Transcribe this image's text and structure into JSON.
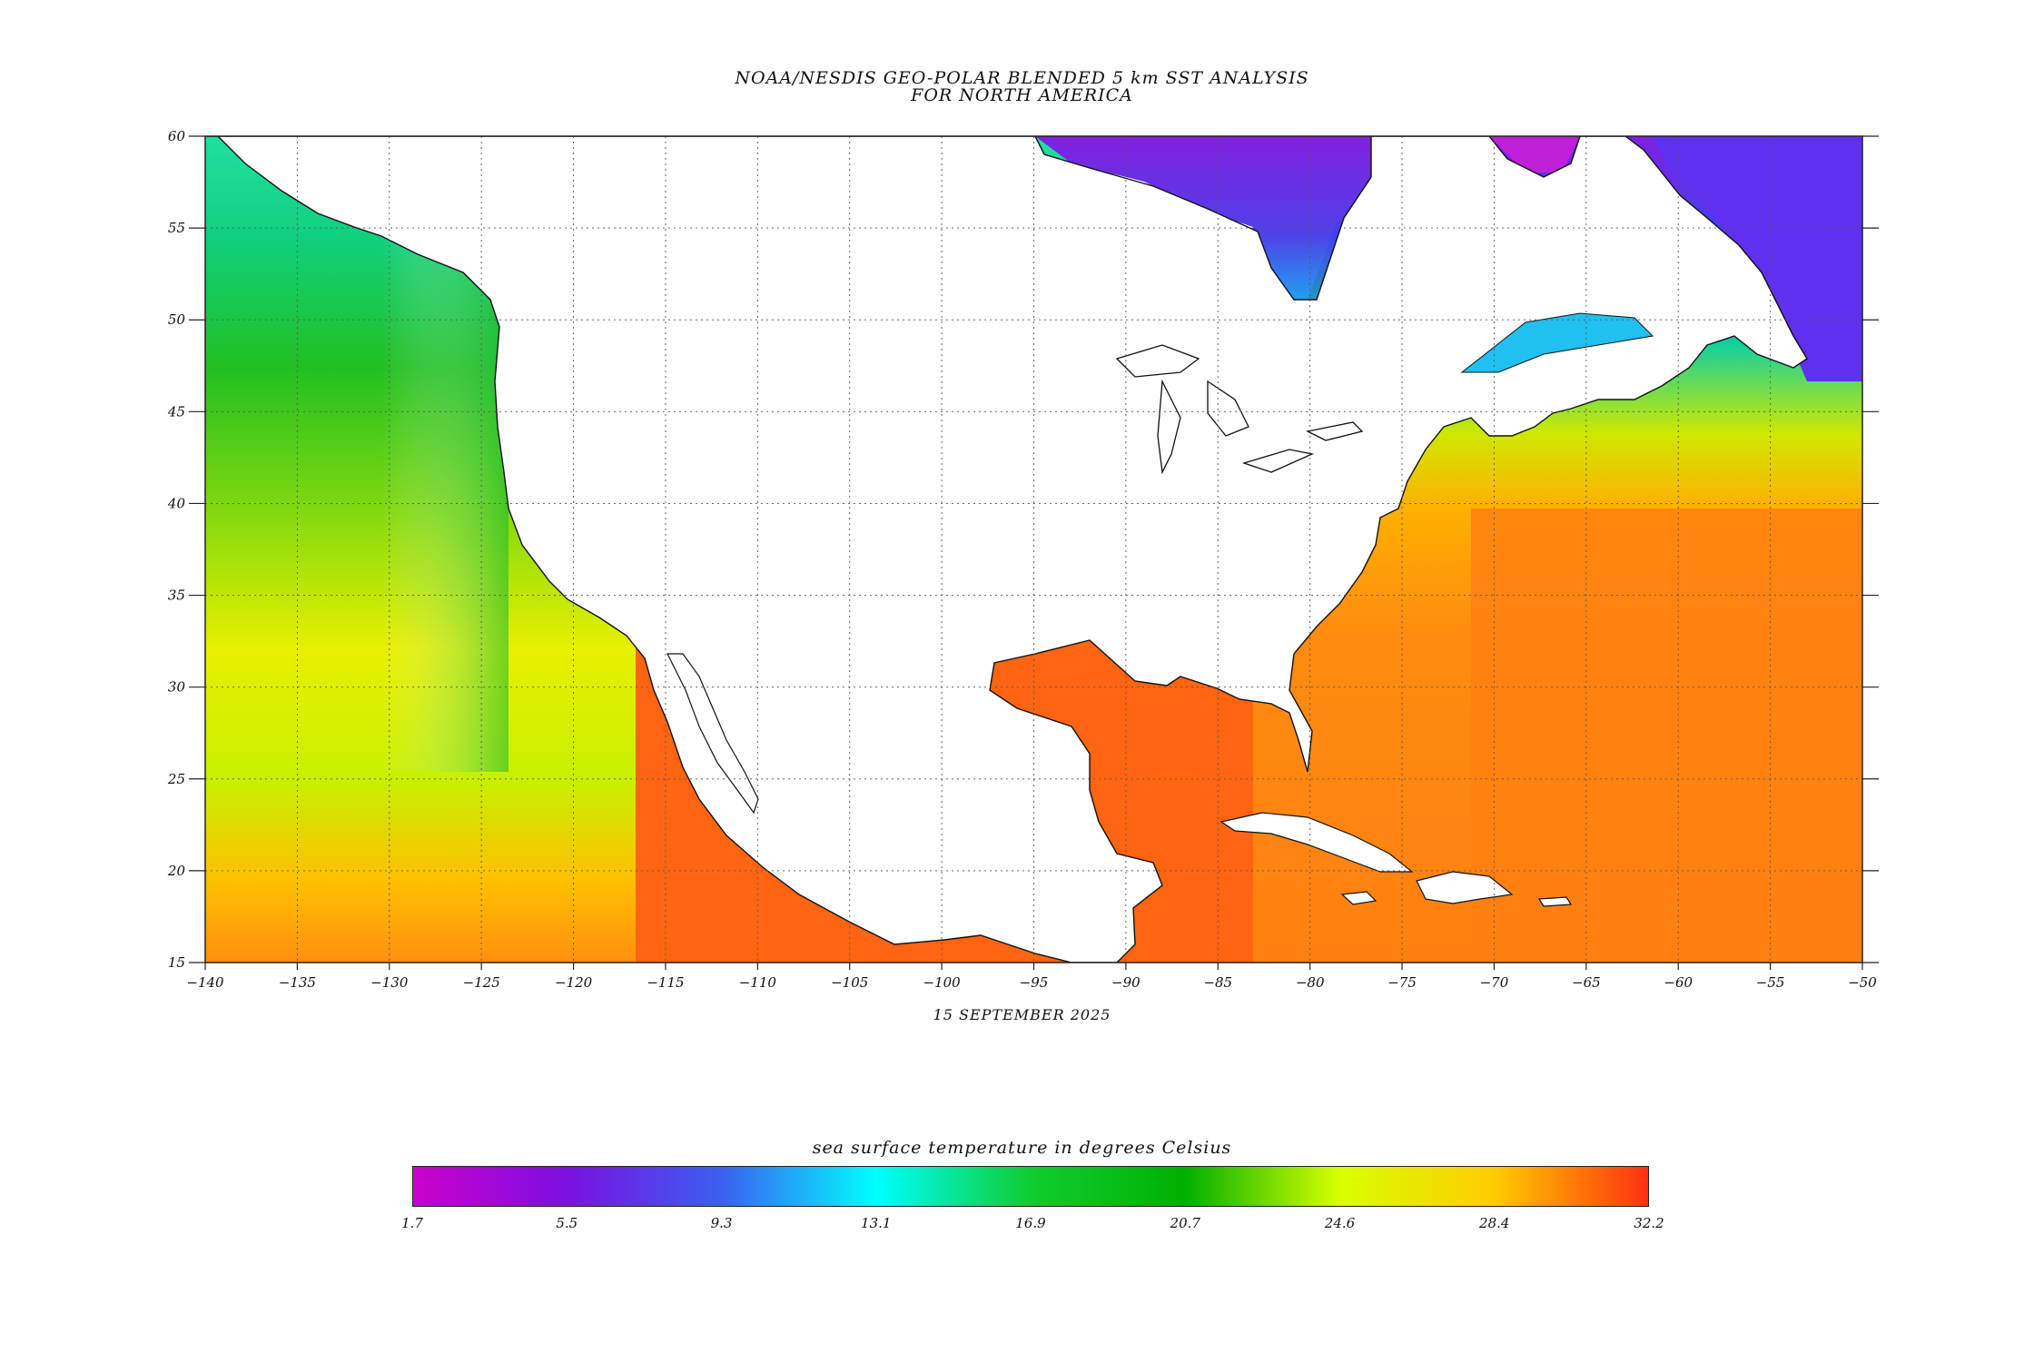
{
  "header": {
    "title_line1": "NOAA/NESDIS GEO-POLAR BLENDED 5 km SST ANALYSIS",
    "title_line2": "FOR NORTH AMERICA"
  },
  "map": {
    "lon_range": [
      -140,
      -50
    ],
    "lat_range": [
      15,
      60
    ],
    "lon_ticks": [
      "-140",
      "-135",
      "-130",
      "-125",
      "-120",
      "-115",
      "-110",
      "-105",
      "-100",
      "-95",
      "-90",
      "-85",
      "-80",
      "-75",
      "-70",
      "-65",
      "-60",
      "-55",
      "-50"
    ],
    "lat_ticks": [
      "60",
      "55",
      "50",
      "45",
      "40",
      "35",
      "30",
      "25",
      "20",
      "15"
    ],
    "grid": "dotted",
    "land_color": "#ffffff",
    "date": "15 SEPTEMBER 2025"
  },
  "colorbar": {
    "title": "sea surface temperature in degrees Celsius",
    "labels": [
      "1.7",
      "5.5",
      "9.3",
      "13.1",
      "16.9",
      "20.7",
      "24.6",
      "28.4",
      "32.2"
    ],
    "range": [
      1.7,
      32.2
    ],
    "colors": [
      "#cc00cc",
      "#7a10e0",
      "#3a60f0",
      "#00ffff",
      "#10cc30",
      "#00b000",
      "#d8ff00",
      "#ffcc00",
      "#ff3010"
    ]
  }
}
